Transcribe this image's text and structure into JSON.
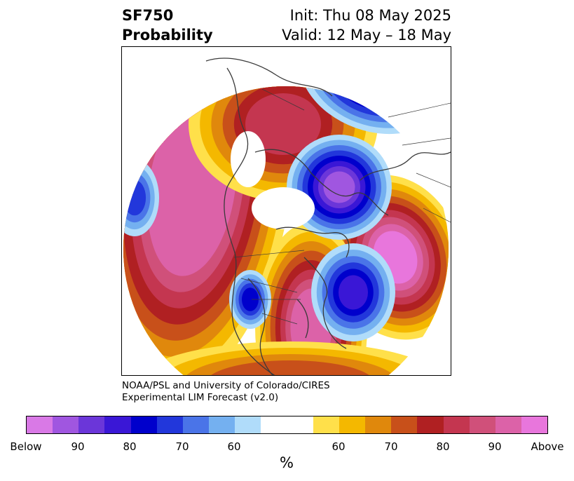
{
  "header": {
    "title_line1": "SF750",
    "title_line2": "Probability",
    "init_text": "Init: Thu 08 May 2025",
    "valid_text": "Valid: 12 May – 18 May"
  },
  "credit": {
    "line1": "NOAA/PSL and University of Colorado/CIRES",
    "line2": "Experimental LIM Forecast (v2.0)"
  },
  "colorbar": {
    "unit": "%",
    "segments": [
      {
        "color": "#d979e6"
      },
      {
        "color": "#a056e0"
      },
      {
        "color": "#6b36d9"
      },
      {
        "color": "#3a17d6"
      },
      {
        "color": "#0000cc"
      },
      {
        "color": "#2237db"
      },
      {
        "color": "#4a74e8"
      },
      {
        "color": "#74b0f0"
      },
      {
        "color": "#b0dcfa"
      },
      {
        "color": "#ffffff"
      },
      {
        "color": "#ffffff"
      },
      {
        "color": "#ffe04a"
      },
      {
        "color": "#f4b800"
      },
      {
        "color": "#e0880c"
      },
      {
        "color": "#c8501a"
      },
      {
        "color": "#b02022"
      },
      {
        "color": "#c43650"
      },
      {
        "color": "#d0507a"
      },
      {
        "color": "#dc62a8"
      },
      {
        "color": "#e876dc"
      }
    ],
    "ticks": [
      "Below",
      "90",
      "80",
      "70",
      "60",
      "60",
      "70",
      "80",
      "90",
      "Above"
    ]
  },
  "map": {
    "colors": {
      "above_max": "#e876dc",
      "above_90": "#dc62a8",
      "above_85": "#d0507a",
      "above_80": "#c43650",
      "above_75": "#b02022",
      "above_70": "#c8501a",
      "above_65": "#e0880c",
      "above_60": "#f4b800",
      "above_55": "#ffe04a",
      "below_55": "#b0dcfa",
      "below_60": "#74b0f0",
      "below_65": "#4a74e8",
      "below_70": "#2237db",
      "below_75": "#0000cc",
      "below_80": "#3a17d6",
      "below_85": "#6b36d9",
      "below_90": "#a056e0",
      "below_max": "#d979e6"
    }
  }
}
